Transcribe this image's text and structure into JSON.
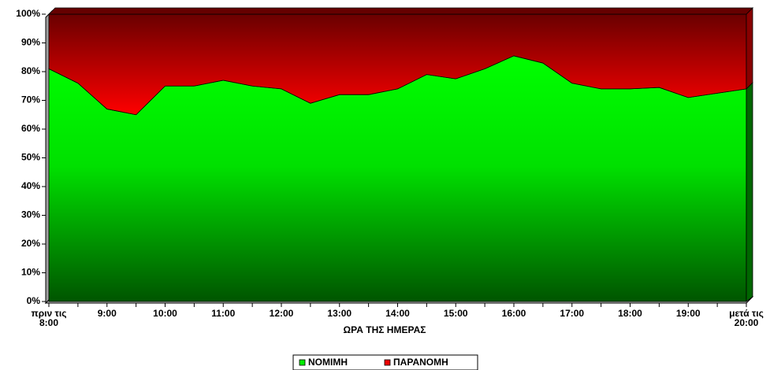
{
  "chart_data": {
    "type": "stacked_area_100",
    "x_label": "ΩΡΑ ΤΗΣ ΗΜΕΡΑΣ",
    "categories": [
      "πριν τις 8:00",
      null,
      "9:00",
      null,
      "10:00",
      null,
      "11:00",
      null,
      "12:00",
      null,
      "13:00",
      null,
      "14:00",
      null,
      "15:00",
      null,
      "16:00",
      null,
      "17:00",
      null,
      "18:00",
      null,
      "19:00",
      null,
      "μετά τις 20:00"
    ],
    "series": [
      {
        "name": "ΝΟΜΙΜΗ",
        "color": "#00ee00",
        "values": [
          81,
          76,
          67,
          65,
          75,
          75,
          77,
          75,
          74,
          69,
          72,
          72,
          74,
          79,
          77.5,
          81,
          85.5,
          83,
          76,
          74,
          74,
          74.5,
          71,
          72.5,
          74
        ]
      },
      {
        "name": "ΠΑΡΑΝΟΜΗ",
        "color": "#ee0000",
        "values": [
          19,
          24,
          33,
          35,
          25,
          25,
          23,
          25,
          26,
          31,
          28,
          28,
          26,
          21,
          22.5,
          19,
          14.5,
          17,
          24,
          26,
          26,
          25.5,
          29,
          27.5,
          26
        ]
      }
    ],
    "ylim": [
      0,
      100
    ],
    "yticks": [
      {
        "value": 0,
        "label": "0%"
      },
      {
        "value": 10,
        "label": "10%"
      },
      {
        "value": 20,
        "label": "20%"
      },
      {
        "value": 30,
        "label": "30%"
      },
      {
        "value": 40,
        "label": "40%"
      },
      {
        "value": 50,
        "label": "50%"
      },
      {
        "value": 60,
        "label": "60%"
      },
      {
        "value": 70,
        "label": "70%"
      },
      {
        "value": 80,
        "label": "80%"
      },
      {
        "value": 90,
        "label": "90%"
      },
      {
        "value": 100,
        "label": "100%"
      }
    ],
    "legend": "bottom"
  }
}
